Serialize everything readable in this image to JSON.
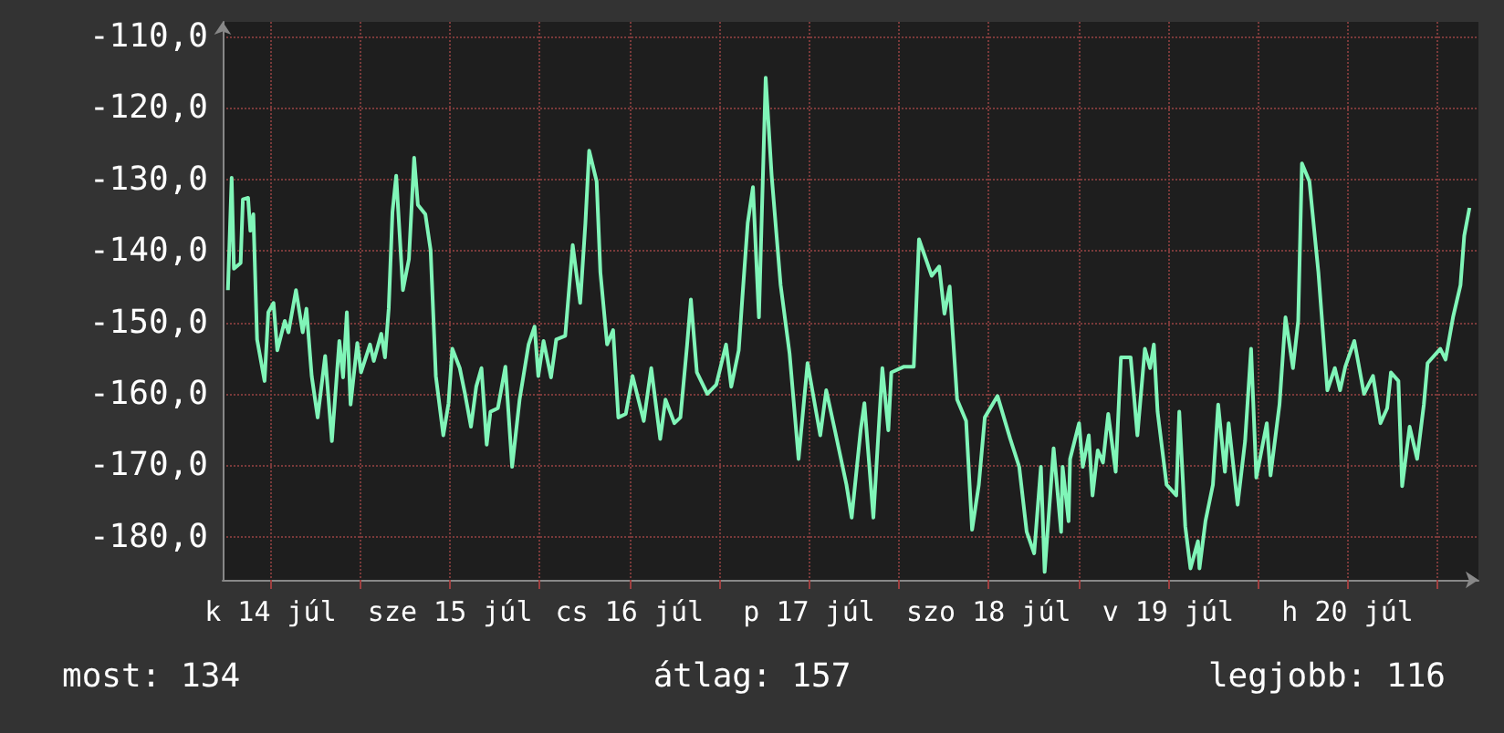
{
  "chart_data": {
    "type": "line",
    "x": [
      "--07-14T06:18",
      "--07-14T06:48",
      "--07-14T07:06",
      "--07-14T08:00",
      "--07-14T08:18",
      "--07-14T09:00",
      "--07-14T09:18",
      "--07-14T09:42",
      "--07-14T10:12",
      "--07-14T11:12",
      "--07-14T11:42",
      "--07-14T12:24",
      "--07-14T12:54",
      "--07-14T13:54",
      "--07-14T14:24",
      "--07-14T15:24",
      "--07-14T16:18",
      "--07-14T16:48",
      "--07-14T17:30",
      "--07-14T18:18",
      "--07-14T19:18",
      "--07-14T20:12",
      "--07-14T21:12",
      "--07-14T21:42",
      "--07-14T22:12",
      "--07-14T22:42",
      "--07-14T23:36",
      "--07-15T00:06",
      "--07-15T01:18",
      "--07-15T01:48",
      "--07-15T02:48",
      "--07-15T03:18",
      "--07-15T03:48",
      "--07-15T04:18",
      "--07-15T04:48",
      "--07-15T05:42",
      "--07-15T06:30",
      "--07-15T07:12",
      "--07-15T07:42",
      "--07-15T08:42",
      "--07-15T09:24",
      "--07-15T10:06",
      "--07-15T11:06",
      "--07-15T11:48",
      "--07-15T12:18",
      "--07-15T13:18",
      "--07-15T14:00",
      "--07-15T14:48",
      "--07-15T15:30",
      "--07-15T16:12",
      "--07-15T16:54",
      "--07-15T17:24",
      "--07-15T18:24",
      "--07-15T19:24",
      "--07-15T20:18",
      "--07-15T21:18",
      "--07-15T22:30",
      "--07-15T23:18",
      "--07-15T23:48",
      "--07-16T00:30",
      "--07-16T01:30",
      "--07-16T02:12",
      "--07-16T03:24",
      "--07-16T04:24",
      "--07-16T05:24",
      "--07-16T06:06",
      "--07-16T06:36",
      "--07-16T07:36",
      "--07-16T08:06",
      "--07-16T09:00",
      "--07-16T09:48",
      "--07-16T10:30",
      "--07-16T11:30",
      "--07-16T12:24",
      "--07-16T13:54",
      "--07-16T14:54",
      "--07-16T16:06",
      "--07-16T16:48",
      "--07-16T18:00",
      "--07-16T18:48",
      "--07-16T19:42",
      "--07-16T20:12",
      "--07-16T21:00",
      "--07-16T22:24",
      "--07-16T23:36",
      "--07-17T00:54",
      "--07-17T01:36",
      "--07-17T02:36",
      "--07-17T03:06",
      "--07-17T03:48",
      "--07-17T04:30",
      "--07-17T05:18",
      "--07-17T06:12",
      "--07-17T07:00",
      "--07-17T08:12",
      "--07-17T09:24",
      "--07-17T10:36",
      "--07-17T11:48",
      "--07-17T13:30",
      "--07-17T14:18",
      "--07-17T15:30",
      "--07-17T17:00",
      "--07-17T17:42",
      "--07-17T18:54",
      "--07-17T19:24",
      "--07-17T20:36",
      "--07-17T21:48",
      "--07-17T22:36",
      "--07-17T23:00",
      "--07-18T00:42",
      "--07-18T02:00",
      "--07-18T02:42",
      "--07-18T04:24",
      "--07-18T05:24",
      "--07-18T06:06",
      "--07-18T06:48",
      "--07-18T07:48",
      "--07-18T09:00",
      "--07-18T09:48",
      "--07-18T10:42",
      "--07-18T11:30",
      "--07-18T13:12",
      "--07-18T14:54",
      "--07-18T16:06",
      "--07-18T17:06",
      "--07-18T18:06",
      "--07-18T19:00",
      "--07-18T19:30",
      "--07-18T20:42",
      "--07-18T21:42",
      "--07-18T21:54",
      "--07-18T22:42",
      "--07-18T22:54",
      "--07-19T00:06",
      "--07-19T00:36",
      "--07-19T01:24",
      "--07-19T01:54",
      "--07-19T02:36",
      "--07-19T03:18",
      "--07-19T04:00",
      "--07-19T05:00",
      "--07-19T05:42",
      "--07-19T07:00",
      "--07-19T07:54",
      "--07-19T08:54",
      "--07-19T09:36",
      "--07-19T10:06",
      "--07-19T10:36",
      "--07-19T11:48",
      "--07-19T13:06",
      "--07-19T13:30",
      "--07-19T14:18",
      "--07-19T15:00",
      "--07-19T16:00",
      "--07-19T16:12",
      "--07-19T17:00",
      "--07-19T18:00",
      "--07-19T18:42",
      "--07-19T19:36",
      "--07-19T20:06",
      "--07-19T21:18",
      "--07-19T22:18",
      "--07-19T23:06",
      "--07-19T23:48",
      "--07-20T01:12",
      "--07-20T01:42",
      "--07-20T02:54",
      "--07-20T03:42",
      "--07-20T04:42",
      "--07-20T05:24",
      "--07-20T05:54",
      "--07-20T06:54",
      "--07-20T08:06",
      "--07-20T09:18",
      "--07-20T10:18",
      "--07-20T11:00",
      "--07-20T11:42",
      "--07-20T12:54",
      "--07-20T14:12",
      "--07-20T15:24",
      "--07-20T16:24",
      "--07-20T17:18",
      "--07-20T17:48",
      "--07-20T18:48",
      "--07-20T19:18",
      "--07-20T20:18",
      "--07-20T21:18",
      "--07-20T22:12",
      "--07-20T22:42",
      "--07-21T00:24",
      "--07-21T01:06",
      "--07-21T02:06",
      "--07-21T03:06",
      "--07-21T03:36",
      "--07-21T04:18"
    ],
    "series": [
      {
        "color": "#80f5b8",
        "values": [
          -145.5,
          -129.8,
          -142.5,
          -141.7,
          -132.8,
          -132.6,
          -137.2,
          -134.9,
          -152.4,
          -158.2,
          -148.6,
          -147.3,
          -153.9,
          -149.8,
          -151.4,
          -145.5,
          -151.4,
          -148.1,
          -157.5,
          -163.3,
          -154.7,
          -166.6,
          -152.6,
          -157.7,
          -148.6,
          -161.5,
          -152.9,
          -157.0,
          -153.1,
          -155.4,
          -151.6,
          -154.9,
          -148.1,
          -134.6,
          -129.5,
          -145.5,
          -141.2,
          -127.0,
          -133.6,
          -134.9,
          -139.9,
          -157.5,
          -165.8,
          -161.3,
          -153.7,
          -156.4,
          -160.0,
          -164.6,
          -159.0,
          -156.4,
          -167.1,
          -162.5,
          -162.0,
          -156.2,
          -170.2,
          -160.8,
          -153.1,
          -150.6,
          -157.5,
          -152.6,
          -157.7,
          -152.4,
          -151.9,
          -139.2,
          -147.3,
          -136.1,
          -126.0,
          -130.3,
          -143.0,
          -153.1,
          -151.1,
          -163.3,
          -162.8,
          -157.5,
          -163.8,
          -156.4,
          -166.3,
          -160.8,
          -164.1,
          -163.3,
          -153.1,
          -146.8,
          -157.0,
          -160.0,
          -158.7,
          -153.1,
          -159.0,
          -153.9,
          -146.3,
          -136.1,
          -131.1,
          -149.3,
          -115.8,
          -129.5,
          -144.8,
          -154.4,
          -169.1,
          -155.7,
          -165.8,
          -159.5,
          -165.3,
          -172.7,
          -177.3,
          -165.1,
          -161.3,
          -177.3,
          -156.4,
          -165.1,
          -157.0,
          -156.2,
          -156.2,
          -138.4,
          -143.5,
          -142.2,
          -148.8,
          -145.0,
          -160.8,
          -163.8,
          -179.0,
          -172.7,
          -163.3,
          -160.3,
          -166.3,
          -170.2,
          -179.3,
          -182.3,
          -170.2,
          -184.9,
          -167.6,
          -179.3,
          -170.2,
          -177.8,
          -169.1,
          -164.1,
          -170.2,
          -165.8,
          -174.2,
          -167.9,
          -169.6,
          -162.8,
          -170.9,
          -154.9,
          -154.9,
          -165.8,
          -153.7,
          -156.4,
          -153.1,
          -162.5,
          -172.7,
          -174.2,
          -162.5,
          -178.5,
          -184.4,
          -180.6,
          -184.4,
          -177.8,
          -172.7,
          -161.5,
          -170.9,
          -164.1,
          -175.5,
          -166.6,
          -153.7,
          -171.7,
          -164.1,
          -171.4,
          -161.5,
          -149.3,
          -156.4,
          -149.8,
          -127.8,
          -130.3,
          -143.0,
          -159.5,
          -156.4,
          -159.5,
          -156.2,
          -152.6,
          -160.0,
          -157.5,
          -164.1,
          -162.0,
          -157.0,
          -158.2,
          -172.9,
          -164.6,
          -169.1,
          -161.5,
          -155.7,
          -153.7,
          -155.2,
          -149.3,
          -144.8,
          -137.9,
          -134.0
        ]
      }
    ],
    "xlim": [
      "--07-14T05:36",
      "--07-21T05:30"
    ],
    "xticks": [
      {
        "value": "--07-14T12:00",
        "label": "k 14 júl"
      },
      {
        "value": "--07-15",
        "label": null
      },
      {
        "value": "--07-15T12:00",
        "label": "sze 15 júl"
      },
      {
        "value": "--07-16",
        "label": null
      },
      {
        "value": "--07-16T12:00",
        "label": "cs 16 júl"
      },
      {
        "value": "--07-17",
        "label": null
      },
      {
        "value": "--07-17T12:00",
        "label": "p 17 júl"
      },
      {
        "value": "--07-18",
        "label": null
      },
      {
        "value": "--07-18T12:00",
        "label": "szo 18 júl"
      },
      {
        "value": "--07-19",
        "label": null
      },
      {
        "value": "--07-19T12:00",
        "label": "v 19 júl"
      },
      {
        "value": "--07-20",
        "label": null
      },
      {
        "value": "--07-20T12:00",
        "label": "h 20 júl"
      },
      {
        "value": "--07-21",
        "label": null
      }
    ],
    "ylim": [
      -186,
      -108
    ],
    "yticks": [
      {
        "value": -110,
        "label": "-110,0"
      },
      {
        "value": -120,
        "label": "-120,0"
      },
      {
        "value": -130,
        "label": "-130,0"
      },
      {
        "value": -140,
        "label": "-140,0"
      },
      {
        "value": -150,
        "label": "-150,0"
      },
      {
        "value": -160,
        "label": "-160,0"
      },
      {
        "value": -170,
        "label": "-170,0"
      },
      {
        "value": -180,
        "label": "-180,0"
      }
    ],
    "grid": true,
    "marker": "none",
    "line_style": "solid",
    "annotations": [
      "most: 134",
      "átlag: 157",
      "legjobb: 116"
    ]
  }
}
